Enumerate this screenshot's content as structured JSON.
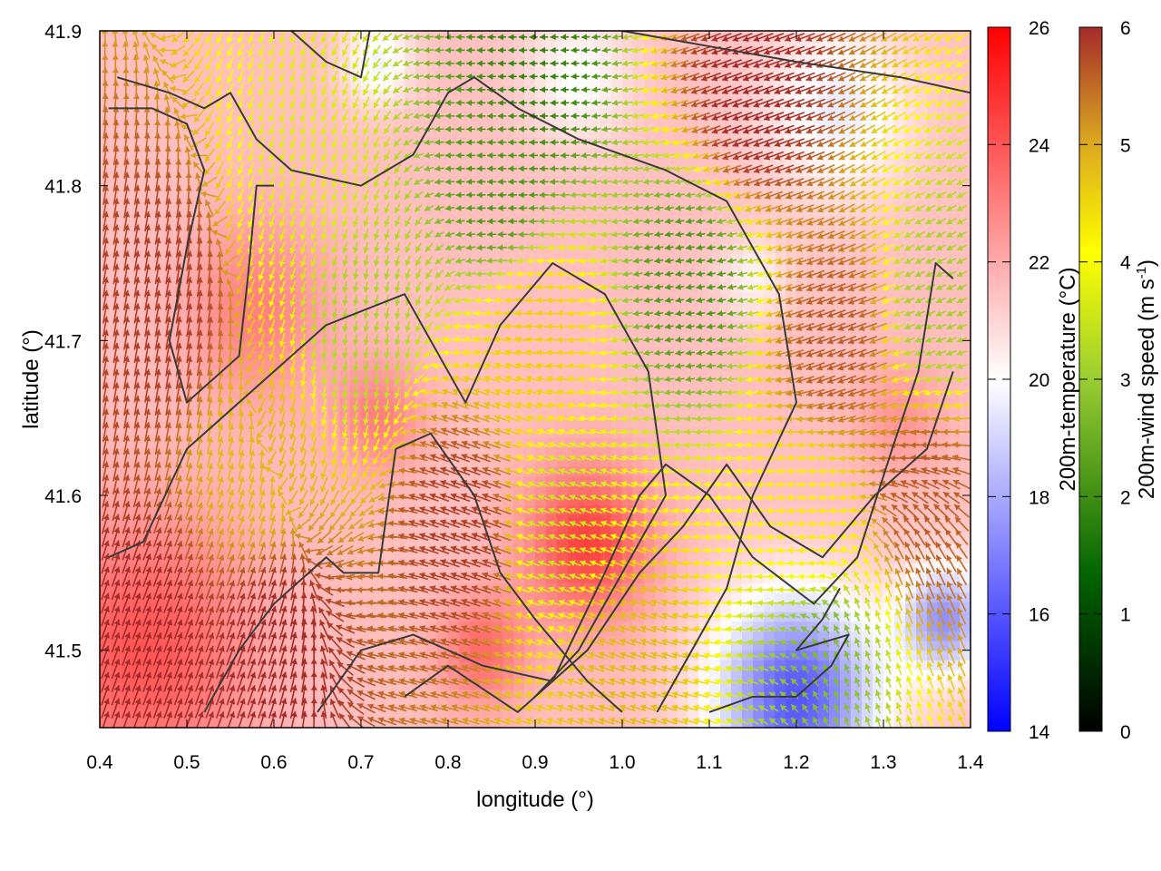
{
  "chart_data": {
    "type": "heatmap",
    "title": "",
    "xlabel": "longitude (°)",
    "ylabel": "latitude (°)",
    "xlim": [
      0.4,
      1.4
    ],
    "ylim": [
      41.45,
      41.9
    ],
    "xticks": [
      {
        "value": 0.4,
        "label": "0.4"
      },
      {
        "value": 0.5,
        "label": "0.5"
      },
      {
        "value": 0.6,
        "label": "0.6"
      },
      {
        "value": 0.7,
        "label": "0.7"
      },
      {
        "value": 0.8,
        "label": "0.8"
      },
      {
        "value": 0.9,
        "label": "0.9"
      },
      {
        "value": 1.0,
        "label": "1.0"
      },
      {
        "value": 1.1,
        "label": "1.1"
      },
      {
        "value": 1.2,
        "label": "1.2"
      },
      {
        "value": 1.3,
        "label": "1.3"
      },
      {
        "value": 1.4,
        "label": "1.4"
      }
    ],
    "yticks": [
      {
        "value": 41.5,
        "label": "41.5"
      },
      {
        "value": 41.6,
        "label": "41.6"
      },
      {
        "value": 41.7,
        "label": "41.7"
      },
      {
        "value": 41.8,
        "label": "41.8"
      },
      {
        "value": 41.9,
        "label": "41.9"
      }
    ],
    "temperature_colorbar": {
      "label": "200m-temperature (°C)",
      "range": [
        14,
        26
      ],
      "ticks": [
        "14",
        "16",
        "18",
        "20",
        "22",
        "24",
        "26"
      ],
      "colors": [
        "#0000ff",
        "#ffffff",
        "#ff0000"
      ]
    },
    "wind_colorbar": {
      "label_prefix": "200m-wind speed (m s",
      "label_sup": "-1",
      "label_suffix": ")",
      "range": [
        0,
        6
      ],
      "ticks": [
        "0",
        "1",
        "2",
        "3",
        "4",
        "5",
        "6"
      ],
      "colors": [
        "#000000",
        "#006400",
        "#9acd32",
        "#ffff00",
        "#daa520",
        "#a52a2a"
      ]
    },
    "temperature_field": {
      "background": 21.5,
      "features": [
        {
          "lon": 0.45,
          "lat": 41.5,
          "r": 0.12,
          "amp": 2.5
        },
        {
          "lon": 0.58,
          "lat": 41.72,
          "r": 0.08,
          "amp": 1.5
        },
        {
          "lon": 0.72,
          "lat": 41.65,
          "r": 0.05,
          "amp": 1.5
        },
        {
          "lon": 0.96,
          "lat": 41.57,
          "r": 0.07,
          "amp": 3.0
        },
        {
          "lon": 0.84,
          "lat": 41.5,
          "r": 0.05,
          "amp": 2.0
        },
        {
          "lon": 1.2,
          "lat": 41.47,
          "r": 0.09,
          "amp": -5.5
        },
        {
          "lon": 1.37,
          "lat": 41.52,
          "r": 0.05,
          "amp": -4.0
        },
        {
          "lon": 1.25,
          "lat": 41.85,
          "r": 0.08,
          "amp": -2.0
        },
        {
          "lon": 0.95,
          "lat": 41.87,
          "r": 0.06,
          "amp": -1.5
        },
        {
          "lon": 0.72,
          "lat": 41.88,
          "r": 0.04,
          "amp": -1.8
        },
        {
          "lon": 1.15,
          "lat": 41.74,
          "r": 0.04,
          "amp": -1.2
        },
        {
          "lon": 1.32,
          "lat": 41.65,
          "r": 0.05,
          "amp": 1.0
        }
      ]
    },
    "wind_field": {
      "direction_deg": [
        {
          "lon": 0.45,
          "lat": 41.7,
          "to": 80
        },
        {
          "lon": 0.5,
          "lat": 41.52,
          "to": 70
        },
        {
          "lon": 0.65,
          "lat": 41.8,
          "to": 250
        },
        {
          "lon": 0.7,
          "lat": 41.7,
          "to": 260
        },
        {
          "lon": 0.85,
          "lat": 41.85,
          "to": 180
        },
        {
          "lon": 0.82,
          "lat": 41.62,
          "to": 160
        },
        {
          "lon": 0.95,
          "lat": 41.55,
          "to": 160
        },
        {
          "lon": 1.05,
          "lat": 41.75,
          "to": 190
        },
        {
          "lon": 1.15,
          "lat": 41.85,
          "to": 200
        },
        {
          "lon": 1.25,
          "lat": 41.7,
          "to": 200
        },
        {
          "lon": 1.2,
          "lat": 41.6,
          "to": 180
        },
        {
          "lon": 1.32,
          "lat": 41.8,
          "to": 210
        },
        {
          "lon": 1.3,
          "lat": 41.5,
          "to": 110
        }
      ],
      "speed_ms": [
        {
          "lon": 0.45,
          "lat": 41.5,
          "v": 6.0
        },
        {
          "lon": 0.47,
          "lat": 41.72,
          "v": 5.8
        },
        {
          "lon": 0.58,
          "lat": 41.62,
          "v": 4.5
        },
        {
          "lon": 0.64,
          "lat": 41.8,
          "v": 3.2
        },
        {
          "lon": 0.7,
          "lat": 41.72,
          "v": 2.6
        },
        {
          "lon": 0.86,
          "lat": 41.8,
          "v": 1.8
        },
        {
          "lon": 0.9,
          "lat": 41.88,
          "v": 1.6
        },
        {
          "lon": 0.9,
          "lat": 41.7,
          "v": 4.2
        },
        {
          "lon": 0.82,
          "lat": 41.58,
          "v": 5.8
        },
        {
          "lon": 0.93,
          "lat": 41.58,
          "v": 3.0
        },
        {
          "lon": 1.08,
          "lat": 41.74,
          "v": 1.8
        },
        {
          "lon": 1.15,
          "lat": 41.86,
          "v": 6.0
        },
        {
          "lon": 1.25,
          "lat": 41.7,
          "v": 5.5
        },
        {
          "lon": 1.22,
          "lat": 41.58,
          "v": 3.8
        },
        {
          "lon": 1.23,
          "lat": 41.5,
          "v": 2.2
        },
        {
          "lon": 1.36,
          "lat": 41.72,
          "v": 2.5
        },
        {
          "lon": 1.35,
          "lat": 41.6,
          "v": 5.5
        },
        {
          "lon": 0.6,
          "lat": 41.5,
          "v": 6.0
        },
        {
          "lon": 1.0,
          "lat": 41.5,
          "v": 4.5
        }
      ]
    },
    "contours": [
      [
        [
          0.42,
          41.87
        ],
        [
          0.48,
          41.86
        ],
        [
          0.52,
          41.85
        ],
        [
          0.55,
          41.86
        ],
        [
          0.58,
          41.83
        ],
        [
          0.62,
          41.81
        ],
        [
          0.7,
          41.8
        ],
        [
          0.76,
          41.82
        ],
        [
          0.8,
          41.86
        ],
        [
          0.83,
          41.87
        ],
        [
          0.88,
          41.85
        ],
        [
          0.95,
          41.83
        ],
        [
          1.05,
          41.81
        ],
        [
          1.12,
          41.79
        ],
        [
          1.18,
          41.73
        ],
        [
          1.2,
          41.66
        ],
        [
          1.15,
          41.6
        ],
        [
          1.12,
          41.54
        ],
        [
          1.08,
          41.5
        ],
        [
          1.04,
          41.46
        ]
      ],
      [
        [
          0.41,
          41.85
        ],
        [
          0.46,
          41.85
        ],
        [
          0.5,
          41.84
        ],
        [
          0.52,
          41.81
        ],
        [
          0.5,
          41.76
        ],
        [
          0.48,
          41.7
        ],
        [
          0.5,
          41.66
        ],
        [
          0.56,
          41.69
        ],
        [
          0.57,
          41.74
        ],
        [
          0.58,
          41.8
        ],
        [
          0.6,
          41.8
        ]
      ],
      [
        [
          0.52,
          41.46
        ],
        [
          0.56,
          41.5
        ],
        [
          0.6,
          41.53
        ],
        [
          0.66,
          41.56
        ],
        [
          0.68,
          41.55
        ],
        [
          0.72,
          41.55
        ],
        [
          0.74,
          41.63
        ],
        [
          0.78,
          41.64
        ],
        [
          0.83,
          41.6
        ],
        [
          0.86,
          41.55
        ],
        [
          0.9,
          41.52
        ],
        [
          0.96,
          41.48
        ],
        [
          1.0,
          41.46
        ]
      ],
      [
        [
          0.41,
          41.56
        ],
        [
          0.45,
          41.57
        ],
        [
          0.5,
          41.63
        ],
        [
          0.58,
          41.67
        ],
        [
          0.66,
          41.71
        ],
        [
          0.75,
          41.73
        ],
        [
          0.82,
          41.66
        ],
        [
          0.86,
          41.71
        ],
        [
          0.92,
          41.75
        ],
        [
          0.98,
          41.73
        ],
        [
          1.03,
          41.68
        ],
        [
          1.05,
          41.6
        ],
        [
          1.0,
          41.55
        ],
        [
          0.95,
          41.5
        ],
        [
          0.9,
          41.47
        ]
      ],
      [
        [
          0.65,
          41.46
        ],
        [
          0.7,
          41.5
        ],
        [
          0.76,
          41.51
        ],
        [
          0.84,
          41.49
        ],
        [
          0.92,
          41.48
        ],
        [
          0.98,
          41.55
        ],
        [
          1.02,
          41.6
        ],
        [
          1.05,
          41.62
        ],
        [
          1.1,
          41.6
        ],
        [
          1.15,
          41.56
        ],
        [
          1.22,
          41.53
        ],
        [
          1.27,
          41.56
        ],
        [
          1.31,
          41.63
        ],
        [
          1.34,
          41.68
        ],
        [
          1.36,
          41.75
        ],
        [
          1.38,
          41.74
        ]
      ],
      [
        [
          0.75,
          41.47
        ],
        [
          0.8,
          41.49
        ],
        [
          0.88,
          41.46
        ],
        [
          0.96,
          41.5
        ],
        [
          1.02,
          41.55
        ],
        [
          1.07,
          41.58
        ],
        [
          1.12,
          41.62
        ],
        [
          1.17,
          41.58
        ],
        [
          1.23,
          41.56
        ],
        [
          1.29,
          41.6
        ],
        [
          1.35,
          41.63
        ],
        [
          1.38,
          41.68
        ]
      ],
      [
        [
          1.1,
          41.46
        ],
        [
          1.15,
          41.47
        ],
        [
          1.2,
          41.47
        ],
        [
          1.24,
          41.49
        ],
        [
          1.26,
          41.51
        ],
        [
          1.2,
          41.5
        ],
        [
          1.23,
          41.52
        ],
        [
          1.25,
          41.54
        ]
      ],
      [
        [
          0.62,
          41.9
        ],
        [
          0.66,
          41.88
        ],
        [
          0.7,
          41.87
        ],
        [
          0.71,
          41.9
        ]
      ],
      [
        [
          1.0,
          41.9
        ],
        [
          1.1,
          41.89
        ],
        [
          1.2,
          41.88
        ],
        [
          1.32,
          41.87
        ],
        [
          1.4,
          41.86
        ]
      ]
    ]
  }
}
